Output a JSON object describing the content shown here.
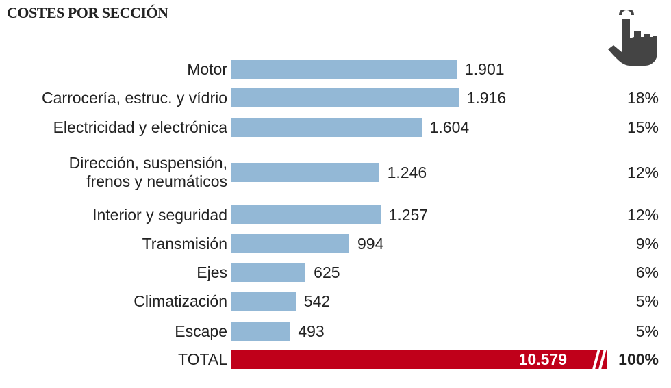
{
  "chart_data": {
    "type": "bar",
    "orientation": "horizontal",
    "title": "COSTES POR SECCIÓN",
    "categories": [
      "Motor",
      "Carrocería, estruc. y vídrio",
      "Electricidad y electrónica",
      "Dirección, suspensión,\nfrenos y neumáticos",
      "Interior y seguridad",
      "Transmisión",
      "Ejes",
      "Climatización",
      "Escape"
    ],
    "values": [
      1901,
      1916,
      1604,
      1246,
      1257,
      994,
      625,
      542,
      493
    ],
    "value_labels": [
      "1.901",
      "1.916",
      "1.604",
      "1.246",
      "1.257",
      "994",
      "625",
      "542",
      "493"
    ],
    "color": "#93b8d6",
    "shares": {
      "values": [
        null,
        18,
        15,
        12,
        12,
        9,
        6,
        5,
        5
      ],
      "value_labels": [
        null,
        "18%",
        "15%",
        "12%",
        "12%",
        "9%",
        "6%",
        "5%",
        "5%"
      ]
    },
    "total": {
      "label": "TOTAL",
      "value": 10579,
      "value_label": "10.579",
      "share": 100,
      "share_label": "100%",
      "color": "#c0001a"
    }
  }
}
